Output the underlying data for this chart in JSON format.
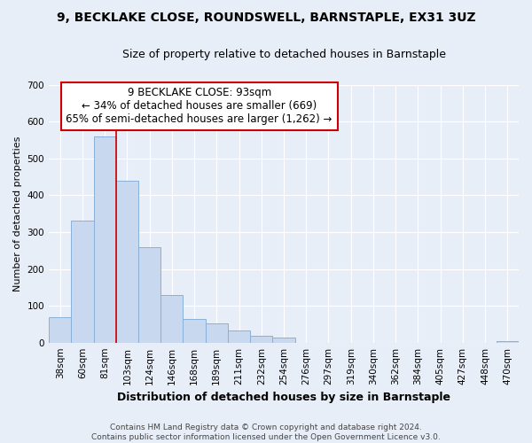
{
  "title_line1": "9, BECKLAKE CLOSE, ROUNDSWELL, BARNSTAPLE, EX31 3UZ",
  "subtitle": "Size of property relative to detached houses in Barnstaple",
  "xlabel": "Distribution of detached houses by size in Barnstaple",
  "ylabel": "Number of detached properties",
  "bar_labels": [
    "38sqm",
    "60sqm",
    "81sqm",
    "103sqm",
    "124sqm",
    "146sqm",
    "168sqm",
    "189sqm",
    "211sqm",
    "232sqm",
    "254sqm",
    "276sqm",
    "297sqm",
    "319sqm",
    "340sqm",
    "362sqm",
    "384sqm",
    "405sqm",
    "427sqm",
    "448sqm",
    "470sqm"
  ],
  "bar_values": [
    70,
    330,
    560,
    440,
    258,
    130,
    65,
    52,
    32,
    18,
    14,
    0,
    0,
    0,
    0,
    0,
    0,
    0,
    0,
    0,
    5
  ],
  "bar_color": "#c8d8ee",
  "bar_edge_color": "#8ab0d8",
  "vline_color": "#cc0000",
  "vline_x_index": 2.5,
  "ylim": [
    0,
    700
  ],
  "yticks": [
    0,
    100,
    200,
    300,
    400,
    500,
    600,
    700
  ],
  "annotation_box_text_line1": "9 BECKLAKE CLOSE: 93sqm",
  "annotation_box_text_line2": "← 34% of detached houses are smaller (669)",
  "annotation_box_text_line3": "65% of semi-detached houses are larger (1,262) →",
  "annotation_box_color": "#ffffff",
  "annotation_box_edge_color": "#cc0000",
  "footer_line1": "Contains HM Land Registry data © Crown copyright and database right 2024.",
  "footer_line2": "Contains public sector information licensed under the Open Government Licence v3.0.",
  "bg_color": "#e8eef8",
  "plot_bg_color": "#e8eef8",
  "grid_color": "#ffffff",
  "title_fontsize": 10,
  "subtitle_fontsize": 9,
  "xlabel_fontsize": 9,
  "ylabel_fontsize": 8,
  "tick_fontsize": 7.5,
  "annotation_fontsize": 8.5,
  "footer_fontsize": 6.5
}
